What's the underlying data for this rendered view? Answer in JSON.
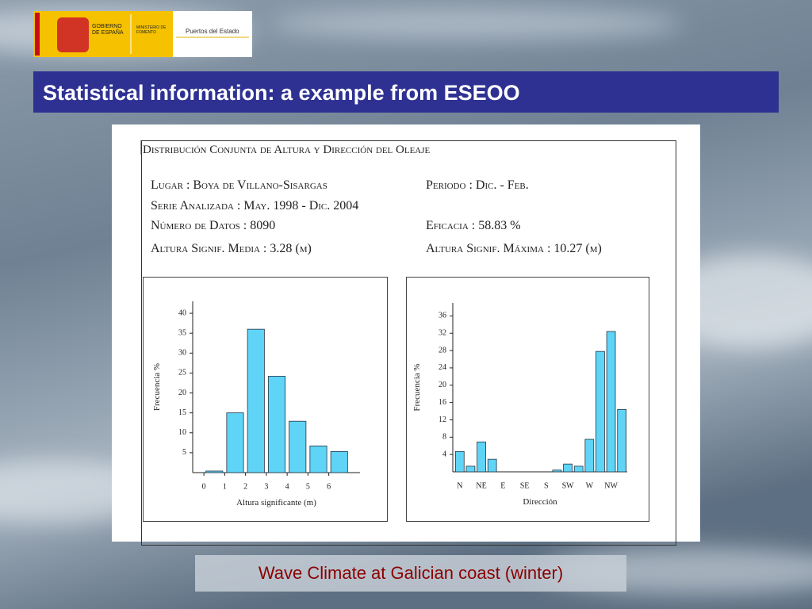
{
  "logos": {
    "government": "GOBIERNO DE ESPAÑA",
    "ministry": "MINISTERIO DE FOMENTO",
    "ports": "Puertos del Estado"
  },
  "slide": {
    "title": "Statistical information: a example from ESEOO",
    "caption": "Wave Climate at Galician coast (winter)"
  },
  "report": {
    "heading": "Distribución Conjunta de Altura y Dirección del Oleaje",
    "fields": {
      "location": "Lugar : Boya de Villano-Sisargas",
      "period": "Periodo : Dic. - Feb.",
      "series": "Serie Analizada : May. 1998 - Dic. 2004",
      "count": "Número de Datos : 8090",
      "efficiency": "Eficacia : 58.83 %",
      "mean_height": "Altura Signif. Media : 3.28 (m)",
      "max_height": "Altura Signif. Máxima : 10.27 (m)"
    }
  },
  "chart_data": [
    {
      "type": "histogram",
      "bins": [
        0,
        1,
        2,
        3,
        4,
        5,
        6,
        7
      ],
      "values": [
        0.4,
        15,
        36,
        24.2,
        12.9,
        6.7,
        5.3
      ],
      "color": "#5fd4f6",
      "xlim": [
        -0.5,
        7.5
      ],
      "xticks": [
        0,
        1,
        2,
        3,
        4,
        5,
        6
      ],
      "ylim": [
        0,
        43
      ],
      "yticks": [
        5,
        10,
        15,
        20,
        25,
        30,
        35,
        40
      ],
      "x_label": "Altura significante (m)",
      "y_label": "Frecuencia %"
    },
    {
      "type": "bar",
      "categories": [
        "N",
        null,
        "NE",
        null,
        "E",
        null,
        "SE",
        null,
        "S",
        null,
        "SW",
        null,
        "W",
        null,
        "NW",
        null
      ],
      "values": [
        4.7,
        1.3,
        6.9,
        2.9,
        0,
        0,
        0,
        0,
        0,
        0.4,
        1.8,
        1.3,
        7.5,
        27.8,
        32.4,
        14.4
      ],
      "color": "#5fd4f6",
      "ylim": [
        0,
        39
      ],
      "yticks": [
        4,
        8,
        12,
        16,
        20,
        24,
        28,
        32,
        36
      ],
      "x_label": "Dirección",
      "y_label": "Frecuencia %"
    }
  ]
}
